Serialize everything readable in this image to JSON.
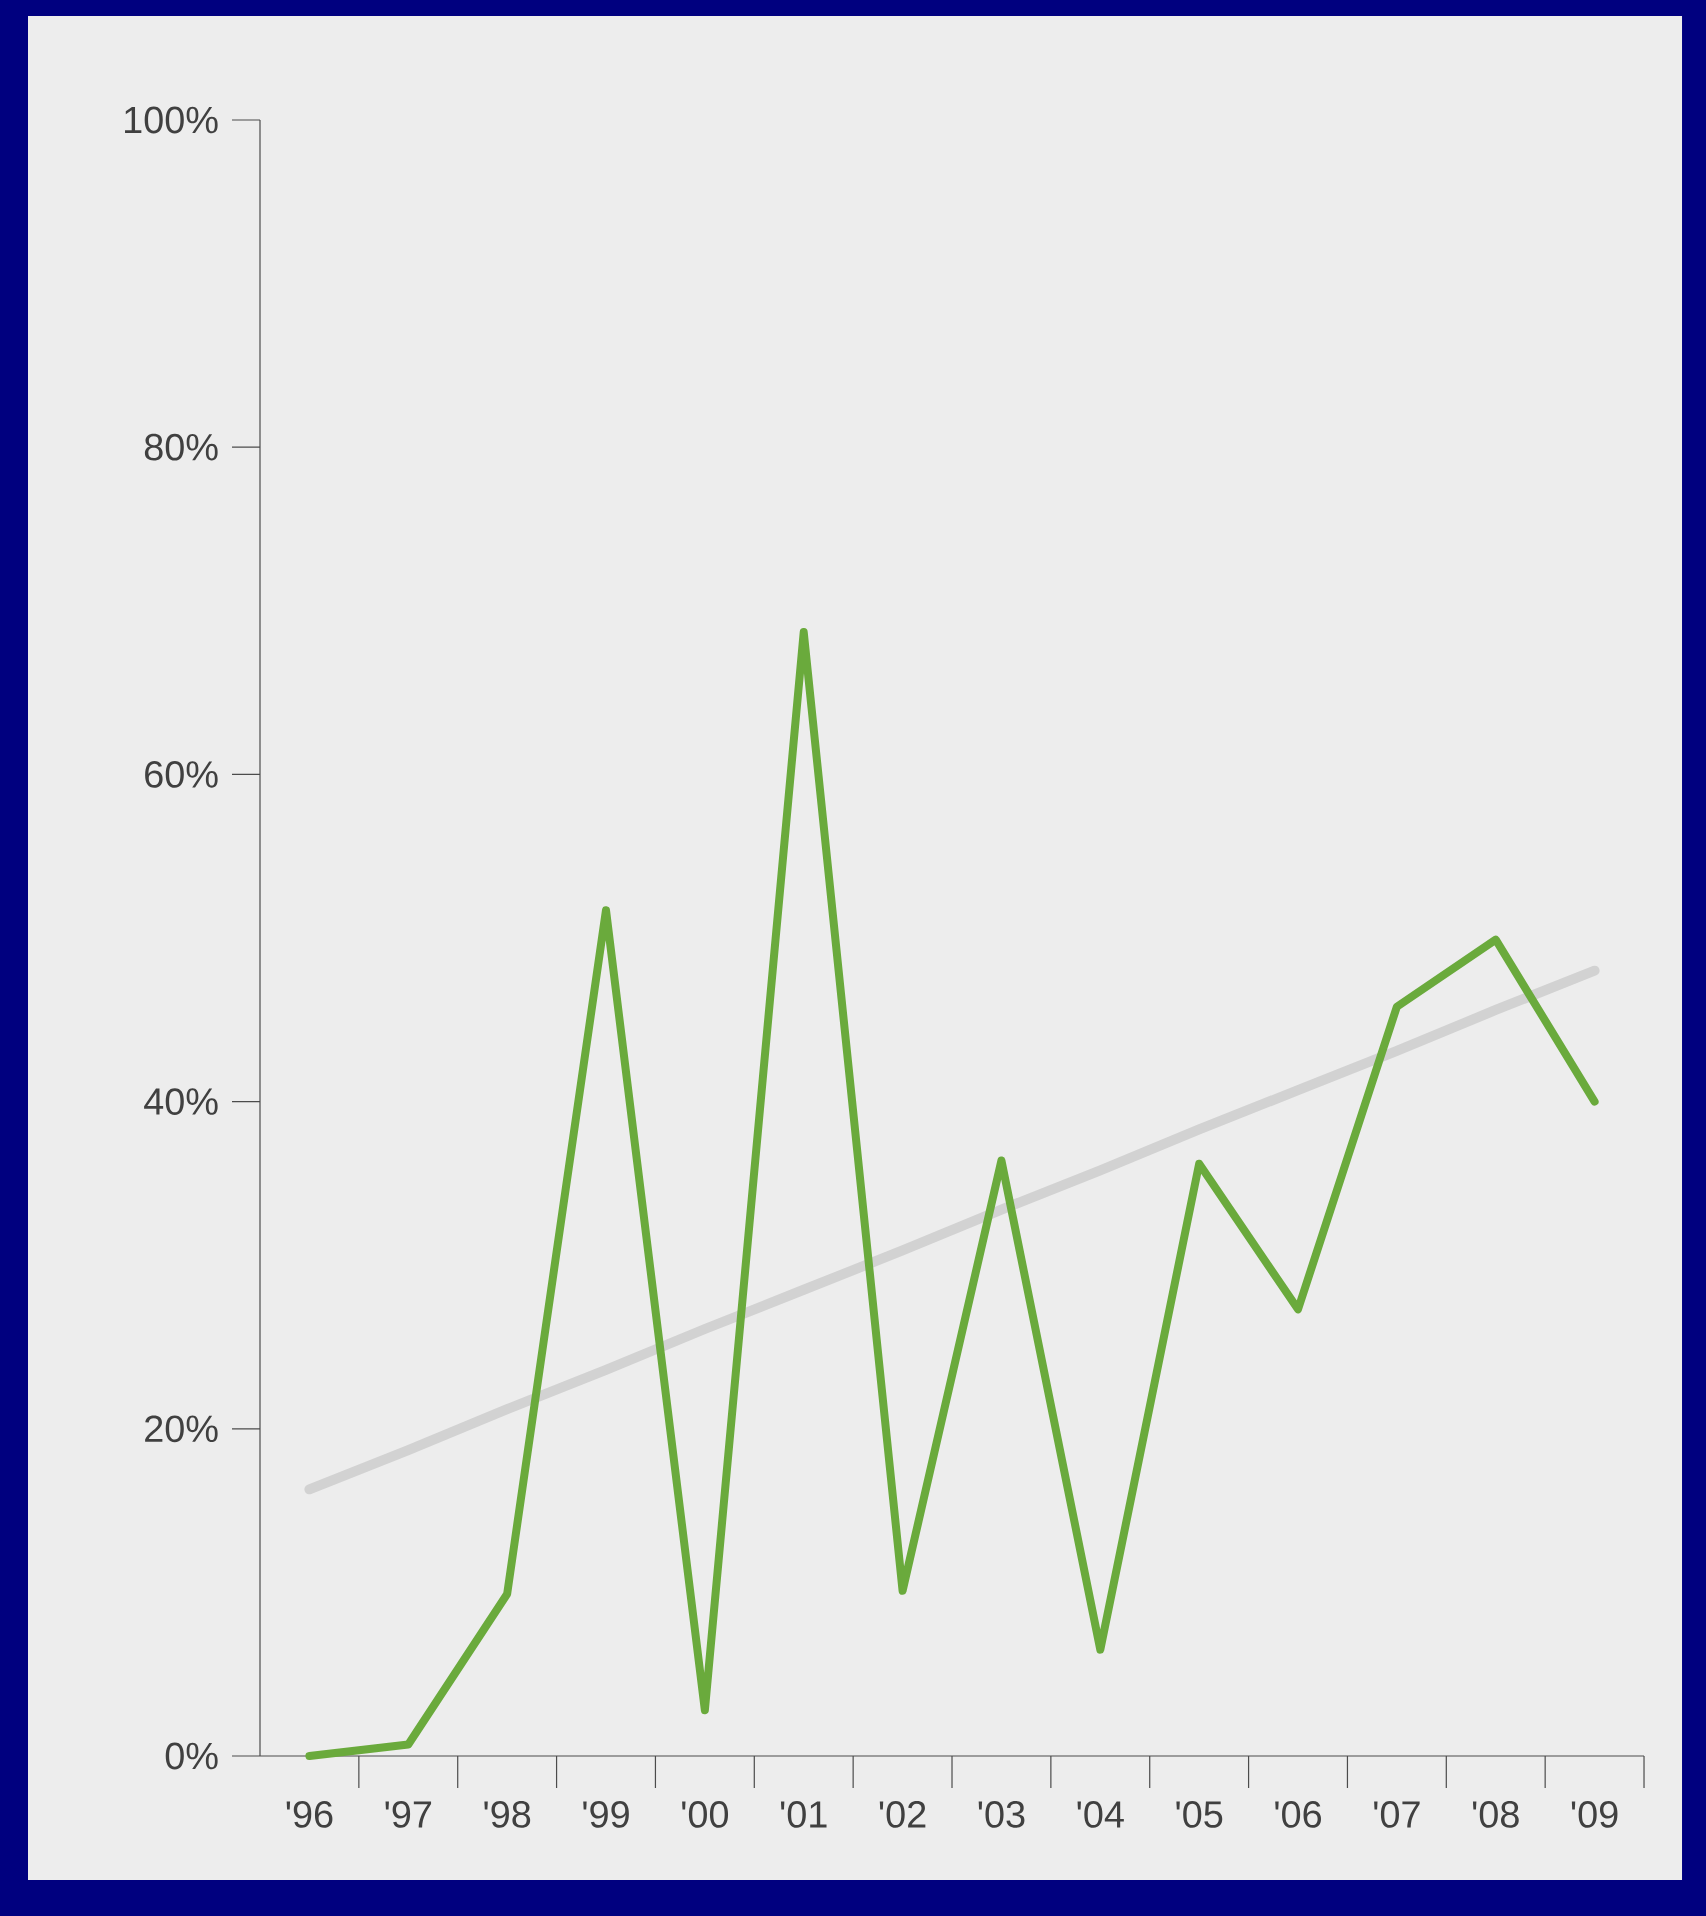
{
  "chart_data": {
    "type": "line",
    "categories": [
      "'96",
      "'97",
      "'98",
      "'99",
      "'00",
      "'01",
      "'02",
      "'03",
      "'04",
      "'05",
      "'06",
      "'07",
      "'08",
      "'09"
    ],
    "series": [
      {
        "values": [
          16.3,
          18.7,
          21.2,
          23.6,
          26.1,
          28.5,
          30.9,
          33.4,
          35.8,
          38.3,
          40.7,
          43.1,
          45.6,
          48.0
        ],
        "color": "#d2d2d2"
      },
      {
        "values": [
          0,
          0.7,
          9.9,
          51.7,
          2.8,
          68.7,
          10.1,
          36.4,
          6.5,
          36.2,
          27.3,
          45.8,
          49.9,
          40.0
        ],
        "color": "#6aaa3c"
      }
    ],
    "ylim": [
      0,
      100
    ],
    "yticks": [
      {
        "value": 0,
        "label": "0%"
      },
      {
        "value": 20,
        "label": "20%"
      },
      {
        "value": 40,
        "label": "40%"
      },
      {
        "value": 60,
        "label": "60%"
      },
      {
        "value": 80,
        "label": "80%"
      },
      {
        "value": 100,
        "label": "100%"
      }
    ],
    "grid": false,
    "legend": false,
    "marker": "none",
    "line_style": "solid"
  }
}
